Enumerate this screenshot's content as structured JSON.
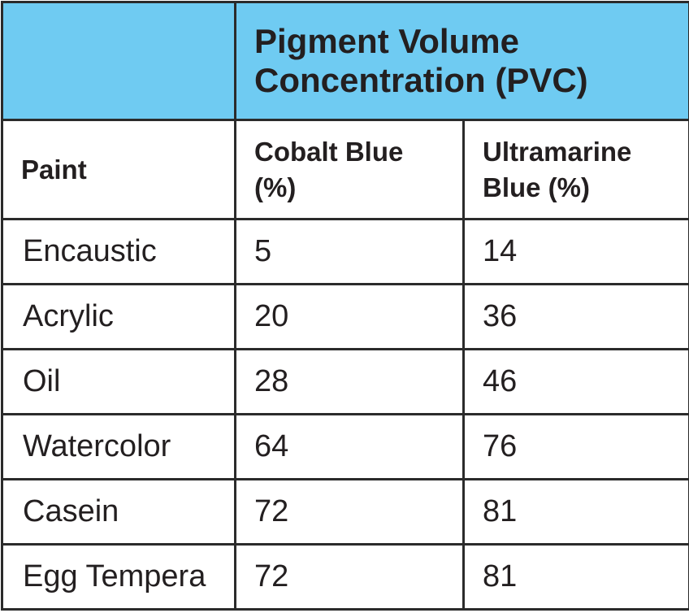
{
  "table": {
    "title": "Pigment Volume Concentration (PVC)",
    "columns": [
      "Paint",
      "Cobalt Blue (%)",
      "Ultramarine Blue (%)"
    ],
    "rows": [
      [
        "Encaustic",
        5,
        14
      ],
      [
        "Acrylic",
        20,
        36
      ],
      [
        "Oil",
        28,
        46
      ],
      [
        "Watercolor",
        64,
        76
      ],
      [
        "Casein",
        72,
        81
      ],
      [
        "Egg Tempera",
        72,
        81
      ]
    ]
  }
}
